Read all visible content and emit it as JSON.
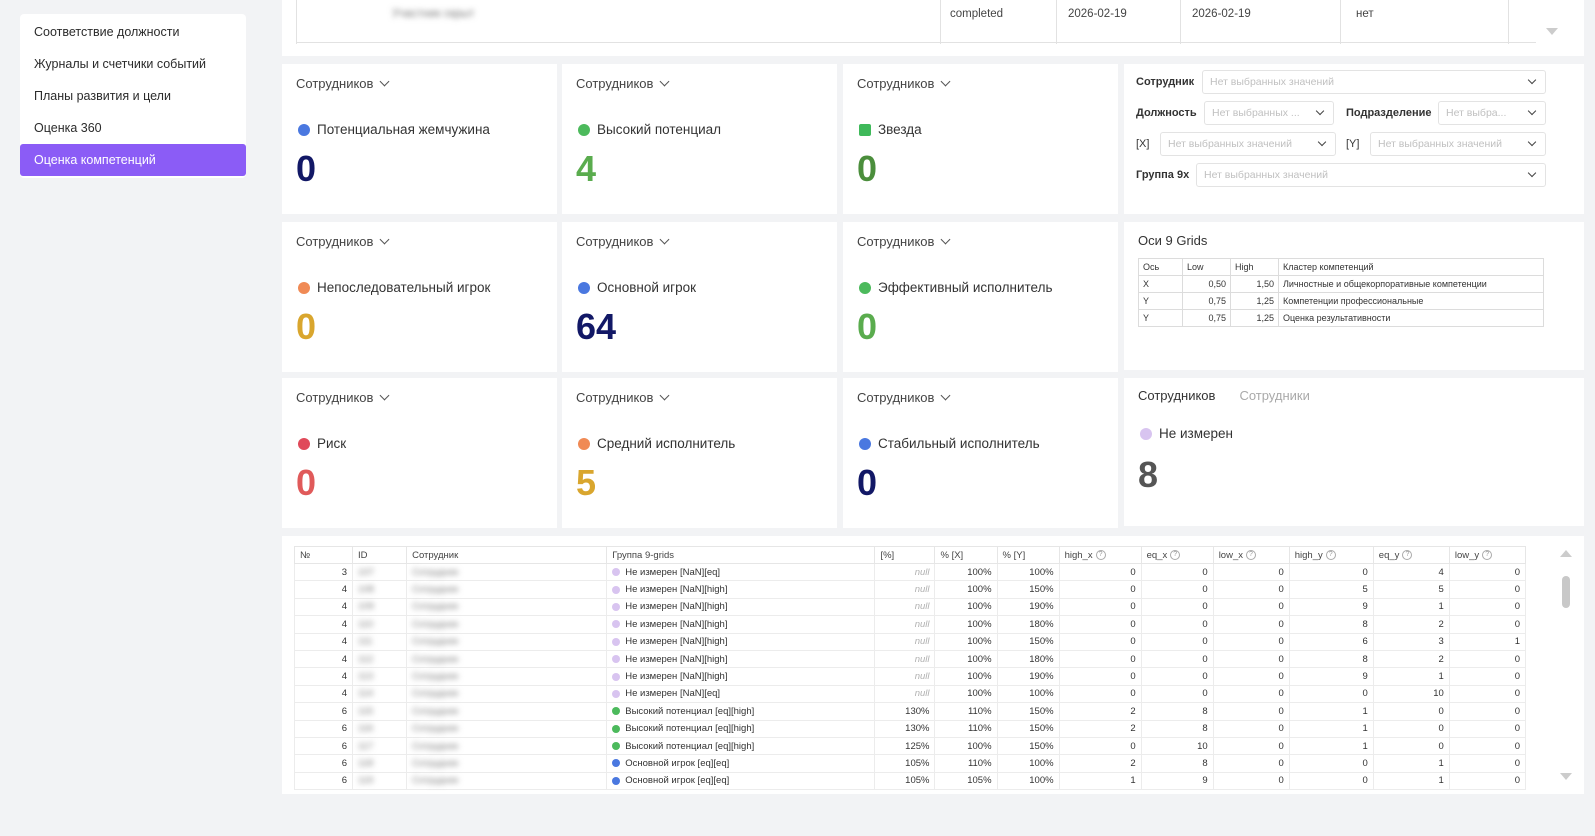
{
  "sidebar": {
    "items": [
      {
        "label": "Соответствие должности"
      },
      {
        "label": "Журналы и счетчики событий"
      },
      {
        "label": "Планы развития и цели"
      },
      {
        "label": "Оценка 360"
      },
      {
        "label": "Оценка компетенций"
      }
    ],
    "active_index": 4
  },
  "top_table": {
    "row": {
      "status": "completed",
      "date1": "2026-02-19",
      "date2": "2026-02-19",
      "flag": "нет",
      "name_blurred": "Участник скрыт"
    }
  },
  "cards": [
    {
      "head": "Сотрудников",
      "label": "Потенциальная жемчужина",
      "value": "0",
      "dot_color": "#4a78e0",
      "value_color": "#121866",
      "icon": "circle"
    },
    {
      "head": "Сотрудников",
      "label": "Высокий потенциал",
      "value": "4",
      "dot_color": "#4cba5c",
      "value_color": "#5aac4e",
      "icon": "circle"
    },
    {
      "head": "Сотрудников",
      "label": "Звезда",
      "value": "0",
      "dot_color": "#3fb95a",
      "value_color": "#4b8e3c",
      "icon": "star-square"
    },
    {
      "head": "Сотрудников",
      "label": "Непоследовательный игрок",
      "value": "0",
      "dot_color": "#f08a55",
      "value_color": "#d9a62e",
      "icon": "circle"
    },
    {
      "head": "Сотрудников",
      "label": "Основной игрок",
      "value": "64",
      "dot_color": "#4a78e0",
      "value_color": "#121866",
      "icon": "circle"
    },
    {
      "head": "Сотрудников",
      "label": "Эффективный исполнитель",
      "value": "0",
      "dot_color": "#4cba5c",
      "value_color": "#5aac4e",
      "icon": "circle"
    },
    {
      "head": "Сотрудников",
      "label": "Риск",
      "value": "0",
      "dot_color": "#e04a5a",
      "value_color": "#e05a5a",
      "icon": "circle"
    },
    {
      "head": "Сотрудников",
      "label": "Средний исполнитель",
      "value": "5",
      "dot_color": "#f08a55",
      "value_color": "#d9a62e",
      "icon": "circle"
    },
    {
      "head": "Сотрудников",
      "label": "Стабильный исполнитель",
      "value": "0",
      "dot_color": "#4a78e0",
      "value_color": "#121866",
      "icon": "circle"
    }
  ],
  "filters": {
    "employee_label": "Сотрудник",
    "employee_placeholder": "Нет выбранных значений",
    "position_label": "Должность",
    "position_placeholder": "Нет выбранных ...",
    "department_label": "Подразделение",
    "department_placeholder": "Нет выбра...",
    "x_label": "[X]",
    "x_placeholder": "Нет выбранных значений",
    "y_label": "[Y]",
    "y_placeholder": "Нет выбранных значений",
    "group_label": "Группа 9x",
    "group_placeholder": "Нет выбранных значений"
  },
  "axes": {
    "title": "Оси 9 Grids",
    "headers": [
      "Ось",
      "Low",
      "High",
      "Кластер компетенций"
    ],
    "rows": [
      [
        "X",
        "0,50",
        "1,50",
        "Личностные и общекорпоративные компетенции"
      ],
      [
        "Y",
        "0,75",
        "1,25",
        "Компетенции профессиональные"
      ],
      [
        "Y",
        "0,75",
        "1,25",
        "Оценка результативности"
      ]
    ]
  },
  "unmeasured": {
    "tab_active": "Сотрудников",
    "tab_inactive": "Сотрудники",
    "label": "Не измерен",
    "value": "8",
    "dot_color": "#d8c4f0",
    "value_color": "#555555"
  },
  "grid": {
    "headers": [
      "№",
      "ID",
      "Сотрудник",
      "Группа 9-grids",
      "[%]",
      "% [X]",
      "% [Y]",
      "high_x",
      "eq_x",
      "low_x",
      "high_y",
      "eq_y",
      "low_y"
    ],
    "help_columns": [
      7,
      8,
      9,
      10,
      11,
      12
    ],
    "rows": [
      {
        "n": "3",
        "id": "107",
        "name": "Сотрудник",
        "group": "Не измерен [NaN][eq]",
        "gc": "#d8c4f0",
        "p": "null",
        "px": "100%",
        "py": "100%",
        "hx": "0",
        "ex": "0",
        "lx": "0",
        "hy": "0",
        "ey": "4",
        "ly": "0"
      },
      {
        "n": "4",
        "id": "108",
        "name": "Сотрудник",
        "group": "Не измерен [NaN][high]",
        "gc": "#d8c4f0",
        "p": "null",
        "px": "100%",
        "py": "150%",
        "hx": "0",
        "ex": "0",
        "lx": "0",
        "hy": "5",
        "ey": "5",
        "ly": "0"
      },
      {
        "n": "4",
        "id": "109",
        "name": "Сотрудник",
        "group": "Не измерен [NaN][high]",
        "gc": "#d8c4f0",
        "p": "null",
        "px": "100%",
        "py": "190%",
        "hx": "0",
        "ex": "0",
        "lx": "0",
        "hy": "9",
        "ey": "1",
        "ly": "0"
      },
      {
        "n": "4",
        "id": "110",
        "name": "Сотрудник",
        "group": "Не измерен [NaN][high]",
        "gc": "#d8c4f0",
        "p": "null",
        "px": "100%",
        "py": "180%",
        "hx": "0",
        "ex": "0",
        "lx": "0",
        "hy": "8",
        "ey": "2",
        "ly": "0"
      },
      {
        "n": "4",
        "id": "111",
        "name": "Сотрудник",
        "group": "Не измерен [NaN][high]",
        "gc": "#d8c4f0",
        "p": "null",
        "px": "100%",
        "py": "150%",
        "hx": "0",
        "ex": "0",
        "lx": "0",
        "hy": "6",
        "ey": "3",
        "ly": "1"
      },
      {
        "n": "4",
        "id": "112",
        "name": "Сотрудник",
        "group": "Не измерен [NaN][high]",
        "gc": "#d8c4f0",
        "p": "null",
        "px": "100%",
        "py": "180%",
        "hx": "0",
        "ex": "0",
        "lx": "0",
        "hy": "8",
        "ey": "2",
        "ly": "0"
      },
      {
        "n": "4",
        "id": "113",
        "name": "Сотрудник",
        "group": "Не измерен [NaN][high]",
        "gc": "#d8c4f0",
        "p": "null",
        "px": "100%",
        "py": "190%",
        "hx": "0",
        "ex": "0",
        "lx": "0",
        "hy": "9",
        "ey": "1",
        "ly": "0"
      },
      {
        "n": "4",
        "id": "114",
        "name": "Сотрудник",
        "group": "Не измерен [NaN][eq]",
        "gc": "#d8c4f0",
        "p": "null",
        "px": "100%",
        "py": "100%",
        "hx": "0",
        "ex": "0",
        "lx": "0",
        "hy": "0",
        "ey": "10",
        "ly": "0"
      },
      {
        "n": "6",
        "id": "115",
        "name": "Сотрудник",
        "group": "Высокий потенциал [eq][high]",
        "gc": "#4cba5c",
        "p": "130%",
        "px": "110%",
        "py": "150%",
        "hx": "2",
        "ex": "8",
        "lx": "0",
        "hy": "1",
        "ey": "0",
        "ly": "0"
      },
      {
        "n": "6",
        "id": "116",
        "name": "Сотрудник",
        "group": "Высокий потенциал [eq][high]",
        "gc": "#4cba5c",
        "p": "130%",
        "px": "110%",
        "py": "150%",
        "hx": "2",
        "ex": "8",
        "lx": "0",
        "hy": "1",
        "ey": "0",
        "ly": "0"
      },
      {
        "n": "6",
        "id": "117",
        "name": "Сотрудник",
        "group": "Высокий потенциал [eq][high]",
        "gc": "#4cba5c",
        "p": "125%",
        "px": "100%",
        "py": "150%",
        "hx": "0",
        "ex": "10",
        "lx": "0",
        "hy": "1",
        "ey": "0",
        "ly": "0"
      },
      {
        "n": "6",
        "id": "118",
        "name": "Сотрудник",
        "group": "Основной игрок [eq][eq]",
        "gc": "#4a78e0",
        "p": "105%",
        "px": "110%",
        "py": "100%",
        "hx": "2",
        "ex": "8",
        "lx": "0",
        "hy": "0",
        "ey": "1",
        "ly": "0"
      },
      {
        "n": "6",
        "id": "119",
        "name": "Сотрудник",
        "group": "Основной игрок [eq][eq]",
        "gc": "#4a78e0",
        "p": "105%",
        "px": "105%",
        "py": "100%",
        "hx": "1",
        "ex": "9",
        "lx": "0",
        "hy": "0",
        "ey": "1",
        "ly": "0"
      }
    ]
  },
  "colors": {
    "accent": "#8b5cf6"
  }
}
